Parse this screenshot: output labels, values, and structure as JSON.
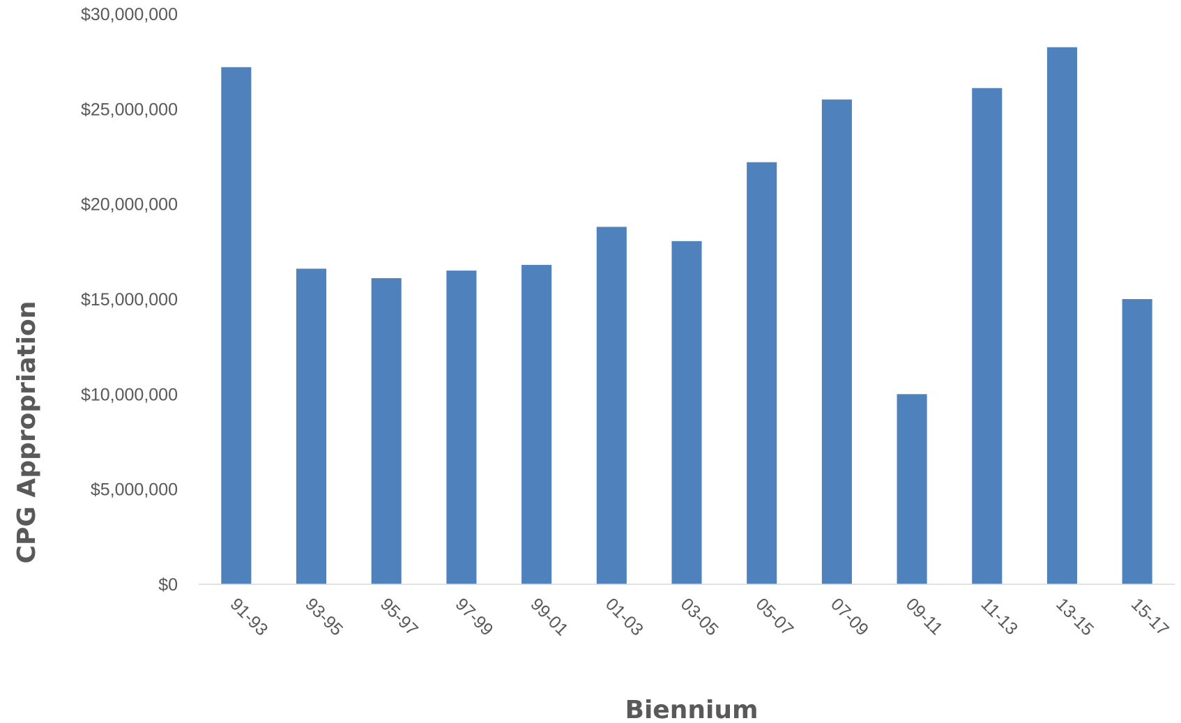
{
  "chart_data": {
    "type": "bar",
    "title": "",
    "xlabel": "Biennium",
    "ylabel": "CPG Appropriation",
    "categories": [
      "91-93",
      "93-95",
      "95-97",
      "97-99",
      "99-01",
      "01-03",
      "03-05",
      "05-07",
      "07-09",
      "09-11",
      "11-13",
      "13-15",
      "15-17"
    ],
    "values": [
      27200000,
      16600000,
      16100000,
      16500000,
      16800000,
      18800000,
      18050000,
      22200000,
      25500000,
      10000000,
      26100000,
      28250000,
      15000000
    ],
    "ylim": [
      0,
      30000000
    ],
    "yticks": [
      0,
      5000000,
      10000000,
      15000000,
      20000000,
      25000000,
      30000000
    ],
    "ytick_labels": [
      "$0",
      "$5,000,000",
      "$10,000,000",
      "$15,000,000",
      "$20,000,000",
      "$25,000,000",
      "$30,000,000"
    ],
    "grid": false,
    "legend": "none",
    "bar_color": "#4f81bd",
    "axis_color": "#d9d9d9",
    "text_color": "#595959"
  }
}
